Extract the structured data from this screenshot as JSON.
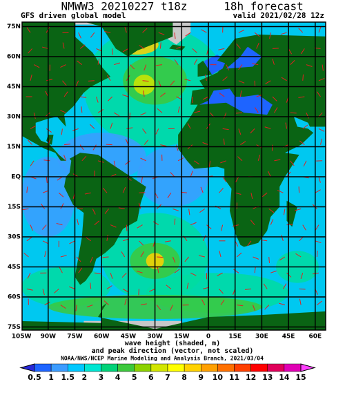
{
  "header": {
    "title": "NMWW3 20210227 t18z",
    "forecast": "18h forecast",
    "model": "GFS driven global model",
    "valid": "valid 2021/02/28 12z"
  },
  "map": {
    "lat_labels": [
      "75N",
      "60N",
      "45N",
      "30N",
      "15N",
      "EQ",
      "15S",
      "30S",
      "45S",
      "60S",
      "75S"
    ],
    "lon_labels": [
      "105W",
      "90W",
      "75W",
      "60W",
      "45W",
      "30W",
      "15W",
      "0",
      "15E",
      "30E",
      "45E",
      "60E"
    ]
  },
  "caption": {
    "line1": "wave height (shaded, m)",
    "line2": "and peak direction (vector, not scaled)",
    "credit": "NOAA/NWS/NCEP Marine Modeling and Analysis Branch, 2021/03/04"
  },
  "colorbar": {
    "labels": [
      0.5,
      1,
      1.5,
      2,
      3,
      4,
      5,
      6,
      7,
      8,
      9,
      10,
      11,
      12,
      13,
      14,
      15
    ],
    "colors": [
      "#2828d8",
      "#1e64ff",
      "#3c9cff",
      "#00c8ff",
      "#00e6d2",
      "#00d278",
      "#3cc83c",
      "#8cd200",
      "#d2e600",
      "#ffff00",
      "#ffd200",
      "#ffa000",
      "#ff7000",
      "#ff4000",
      "#ff0000",
      "#e0005a",
      "#e000b4",
      "#ff40ff"
    ]
  }
}
